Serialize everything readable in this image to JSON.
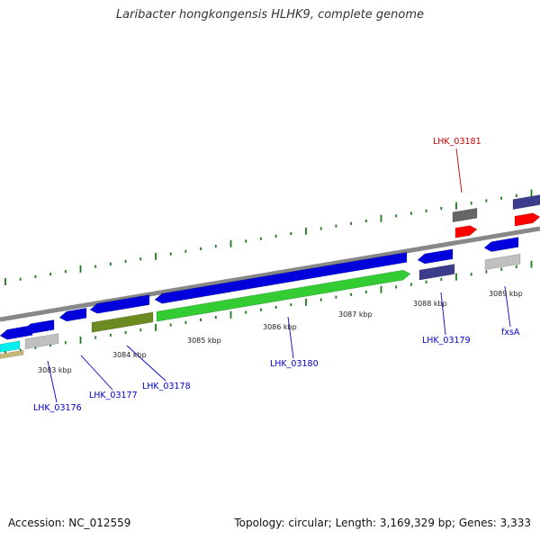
{
  "title": "Laribacter hongkongensis HLHK9, complete genome",
  "footer": {
    "accession": "Accession: NC_012559",
    "stats": "Topology: circular; Length: 3,169,329 bp; Genes: 3,333"
  },
  "colors": {
    "backbone": "#888888",
    "blue": "#0000dd",
    "green": "#33cc33",
    "olive": "#6b8a1f",
    "purple": "#3c3c8c",
    "red": "#ff0000",
    "gray": "#666666",
    "silver": "#c0c0c0",
    "cyan": "#00eeee",
    "tan": "#c8b878",
    "tick": "#1a7a1a",
    "label_blue": "#0000cc",
    "label_red": "#cc0000"
  },
  "scale_labels": [
    {
      "text": "3083 kbp"
    },
    {
      "text": "3084 kbp"
    },
    {
      "text": "3085 kbp"
    },
    {
      "text": "3086 kbp"
    },
    {
      "text": "3087 kbp"
    },
    {
      "text": "3088 kbp"
    },
    {
      "text": "3089 kbp"
    }
  ],
  "gene_labels": [
    {
      "text": "LHK_03176",
      "color": "blue"
    },
    {
      "text": "LHK_03177",
      "color": "blue"
    },
    {
      "text": "LHK_03178",
      "color": "blue"
    },
    {
      "text": "LHK_03180",
      "color": "blue"
    },
    {
      "text": "LHK_03179",
      "color": "blue"
    },
    {
      "text": "fxsA",
      "color": "blue"
    },
    {
      "text": "LHK_03181",
      "color": "red"
    }
  ]
}
